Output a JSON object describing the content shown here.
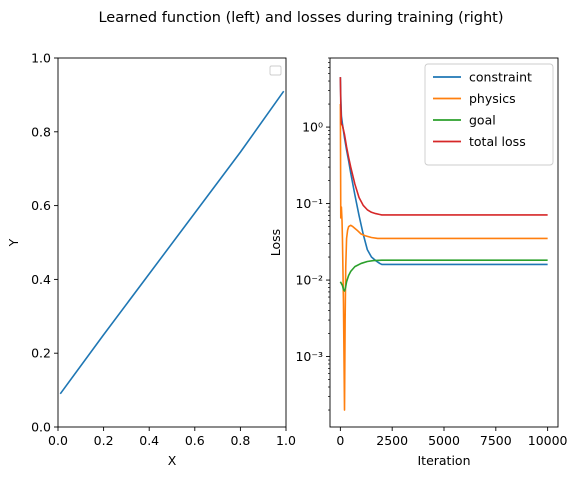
{
  "figure": {
    "suptitle": "Learned function (left) and losses during training (right)"
  },
  "chart_data": [
    {
      "type": "line",
      "panel": "left",
      "xlabel": "X",
      "ylabel": "Y",
      "xlim": [
        0,
        1
      ],
      "ylim": [
        0,
        1
      ],
      "xticks": [
        0.0,
        0.2,
        0.4,
        0.6,
        0.8,
        1.0
      ],
      "xtick_labels": [
        "0.0",
        "0.2",
        "0.4",
        "0.6",
        "0.8",
        "1.0"
      ],
      "yticks": [
        0.0,
        0.2,
        0.4,
        0.6,
        0.8,
        1.0
      ],
      "ytick_labels": [
        "0.0",
        "0.2",
        "0.4",
        "0.6",
        "0.8",
        "1.0"
      ],
      "legend": "top-right (empty)",
      "grid": false,
      "series": [
        {
          "color": "#1f77b4",
          "x": [
            0.01,
            0.2,
            0.4,
            0.6,
            0.8,
            0.99
          ],
          "y": [
            0.09,
            0.25,
            0.415,
            0.58,
            0.745,
            0.91
          ]
        }
      ]
    },
    {
      "type": "line",
      "panel": "right",
      "xlabel": "Iteration",
      "ylabel": "Loss",
      "yscale": "log",
      "xlim": [
        -500,
        10500
      ],
      "ylim": [
        0.00012,
        8
      ],
      "xticks": [
        0,
        2500,
        5000,
        7500,
        10000
      ],
      "xtick_labels": [
        "0",
        "2500",
        "5000",
        "7500",
        "10000"
      ],
      "yticks": [
        0.001,
        0.01,
        0.1,
        1
      ],
      "ytick_labels": [
        "10⁻³",
        "10⁻²",
        "10⁻¹",
        "10⁰"
      ],
      "legend": "top-right",
      "grid": false,
      "series": [
        {
          "name": "constraint",
          "color": "#1f77b4",
          "x": [
            0,
            20,
            50,
            100,
            200,
            300,
            400,
            500,
            700,
            900,
            1100,
            1300,
            1500,
            1700,
            1900,
            2000,
            2500,
            5000,
            7500,
            10000
          ],
          "y": [
            4.5,
            2.5,
            1.4,
            1.1,
            0.72,
            0.5,
            0.36,
            0.25,
            0.13,
            0.07,
            0.04,
            0.025,
            0.02,
            0.018,
            0.0165,
            0.016,
            0.016,
            0.016,
            0.016,
            0.016
          ]
        },
        {
          "name": "physics",
          "color": "#ff7f0e",
          "x": [
            0,
            20,
            50,
            80,
            100,
            150,
            200,
            230,
            260,
            300,
            350,
            400,
            500,
            600,
            800,
            1000,
            1200,
            1500,
            1800,
            2000,
            2500,
            5000,
            7500,
            10000
          ],
          "y": [
            2.0,
            0.065,
            0.09,
            0.06,
            0.035,
            0.005,
            0.0002,
            0.003,
            0.015,
            0.035,
            0.045,
            0.05,
            0.052,
            0.05,
            0.045,
            0.04,
            0.038,
            0.036,
            0.035,
            0.035,
            0.035,
            0.035,
            0.035,
            0.035
          ]
        },
        {
          "name": "goal",
          "color": "#2ca02c",
          "x": [
            0,
            50,
            100,
            150,
            200,
            250,
            300,
            400,
            500,
            700,
            1000,
            1300,
            1600,
            2000,
            2500,
            5000,
            7500,
            10000
          ],
          "y": [
            0.0095,
            0.009,
            0.0085,
            0.0075,
            0.0072,
            0.008,
            0.0095,
            0.0115,
            0.013,
            0.015,
            0.0165,
            0.0175,
            0.018,
            0.0182,
            0.0182,
            0.0182,
            0.0182,
            0.0182
          ]
        },
        {
          "name": "total loss",
          "color": "#d62728",
          "x": [
            0,
            20,
            50,
            100,
            200,
            300,
            400,
            500,
            700,
            900,
            1100,
            1300,
            1500,
            1700,
            1900,
            2000,
            2500,
            5000,
            7500,
            10000
          ],
          "y": [
            4.5,
            2.0,
            1.1,
            1.05,
            0.8,
            0.55,
            0.4,
            0.3,
            0.18,
            0.12,
            0.095,
            0.083,
            0.077,
            0.074,
            0.072,
            0.071,
            0.071,
            0.071,
            0.071,
            0.071
          ]
        }
      ]
    }
  ]
}
